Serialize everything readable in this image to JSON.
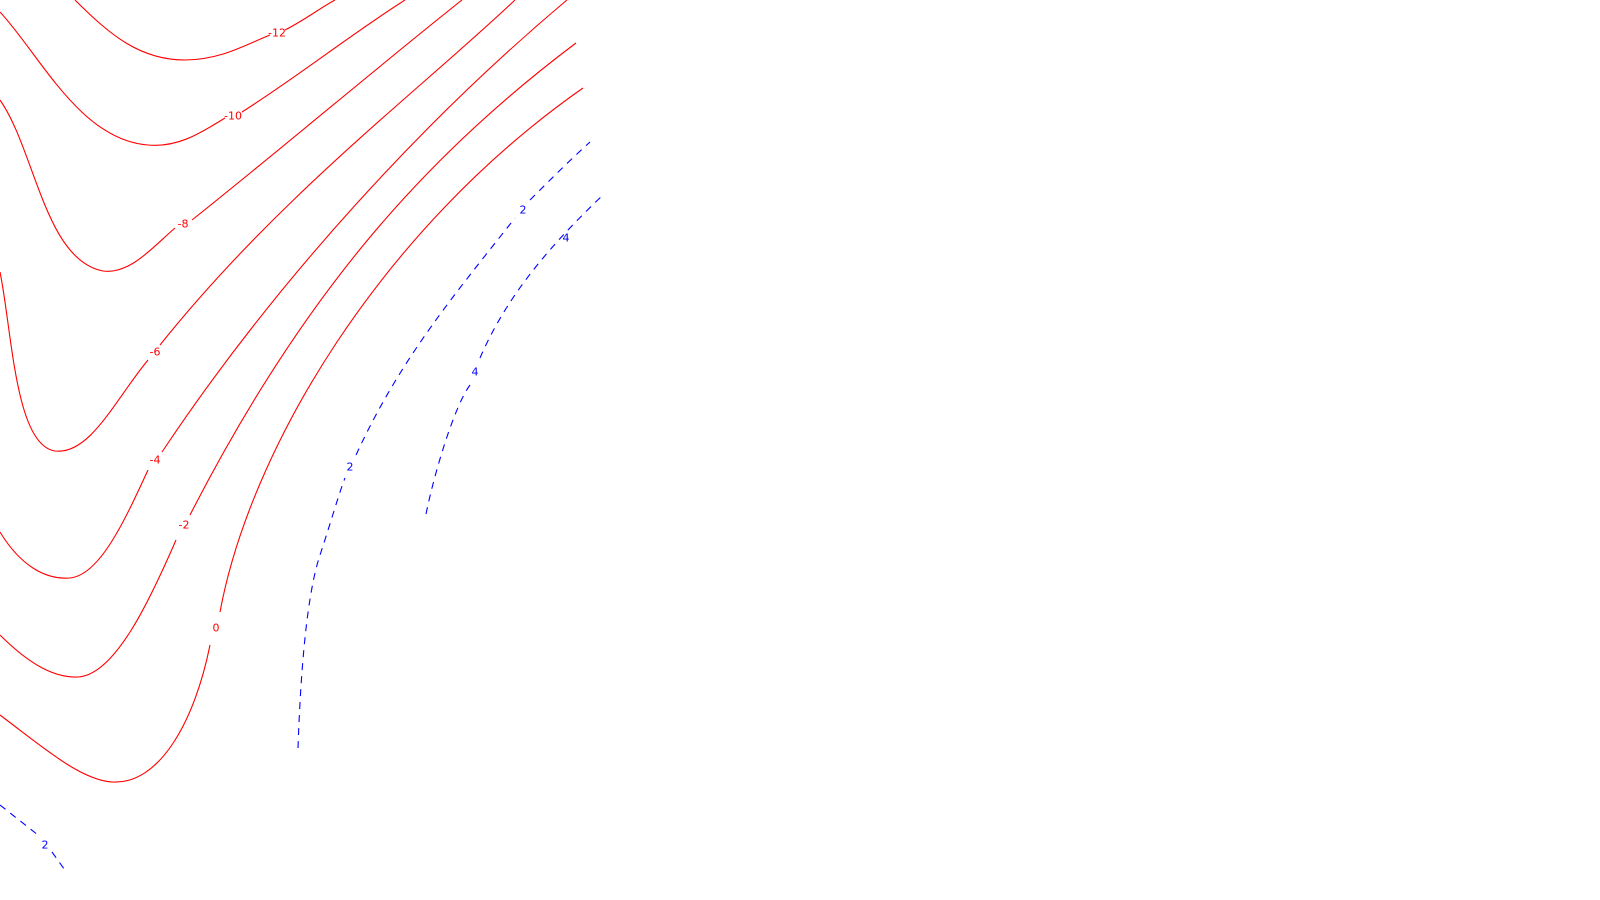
{
  "chart_data": {
    "type": "contour",
    "title": "",
    "xlabel": "",
    "ylabel": "",
    "grid": false,
    "legend": "none",
    "colors": {
      "negative": "#ff0000",
      "positive": "#0000ff"
    },
    "line_styles": {
      "negative": "solid",
      "positive": "dashed"
    },
    "levels": [
      {
        "id": "m12",
        "value": -12,
        "label": "-12",
        "sign": "negative"
      },
      {
        "id": "m10",
        "value": -10,
        "label": "-10",
        "sign": "negative"
      },
      {
        "id": "m8",
        "value": -8,
        "label": "-8",
        "sign": "negative"
      },
      {
        "id": "m6",
        "value": -6,
        "label": "-6",
        "sign": "negative"
      },
      {
        "id": "m4",
        "value": -4,
        "label": "-4",
        "sign": "negative"
      },
      {
        "id": "m2",
        "value": -2,
        "label": "-2",
        "sign": "negative"
      },
      {
        "id": "z0",
        "value": 0,
        "label": "0",
        "sign": "negative"
      },
      {
        "id": "p2",
        "value": 2,
        "label": "2",
        "sign": "positive"
      },
      {
        "id": "p4",
        "value": 4,
        "label": "4",
        "sign": "positive"
      },
      {
        "id": "p2b",
        "value": 2,
        "label": "2",
        "sign": "positive"
      }
    ]
  }
}
